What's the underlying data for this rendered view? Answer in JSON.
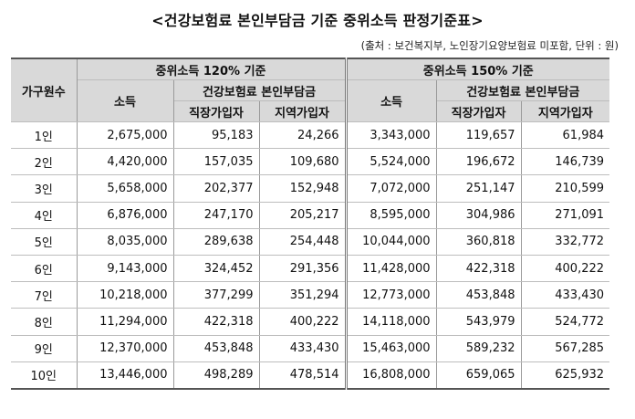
{
  "title": "<건강보험료 본인부담금 기준 중위소득 판정기준표>",
  "source_note": "(출처 : 보건복지부, 노인장기요양보험료 미포함, 단위 : 원)",
  "headers": {
    "household": "가구원수",
    "group_120": "중위소득 120% 기준",
    "group_150": "중위소득 150% 기준",
    "income": "소득",
    "premium": "건강보험료 본인부담금",
    "workplace": "직장가입자",
    "regional": "지역가입자"
  },
  "rows": [
    {
      "label": "1인",
      "inc120": "2,675,000",
      "work120": "95,183",
      "reg120": "24,266",
      "inc150": "3,343,000",
      "work150": "119,657",
      "reg150": "61,984"
    },
    {
      "label": "2인",
      "inc120": "4,420,000",
      "work120": "157,035",
      "reg120": "109,680",
      "inc150": "5,524,000",
      "work150": "196,672",
      "reg150": "146,739"
    },
    {
      "label": "3인",
      "inc120": "5,658,000",
      "work120": "202,377",
      "reg120": "152,948",
      "inc150": "7,072,000",
      "work150": "251,147",
      "reg150": "210,599"
    },
    {
      "label": "4인",
      "inc120": "6,876,000",
      "work120": "247,170",
      "reg120": "205,217",
      "inc150": "8,595,000",
      "work150": "304,986",
      "reg150": "271,091"
    },
    {
      "label": "5인",
      "inc120": "8,035,000",
      "work120": "289,638",
      "reg120": "254,448",
      "inc150": "10,044,000",
      "work150": "360,818",
      "reg150": "332,772"
    },
    {
      "label": "6인",
      "inc120": "9,143,000",
      "work120": "324,452",
      "reg120": "291,356",
      "inc150": "11,428,000",
      "work150": "422,318",
      "reg150": "400,222"
    },
    {
      "label": "7인",
      "inc120": "10,218,000",
      "work120": "377,299",
      "reg120": "351,294",
      "inc150": "12,773,000",
      "work150": "453,848",
      "reg150": "433,430"
    },
    {
      "label": "8인",
      "inc120": "11,294,000",
      "work120": "422,318",
      "reg120": "400,222",
      "inc150": "14,118,000",
      "work150": "543,979",
      "reg150": "524,772"
    },
    {
      "label": "9인",
      "inc120": "12,370,000",
      "work120": "453,848",
      "reg120": "433,430",
      "inc150": "15,463,000",
      "work150": "589,232",
      "reg150": "567,285"
    },
    {
      "label": "10인",
      "inc120": "13,446,000",
      "work120": "498,289",
      "reg120": "478,514",
      "inc150": "16,808,000",
      "work150": "659,065",
      "reg150": "625,932"
    }
  ],
  "colors": {
    "header_bg": "#d9d9d9",
    "border": "#9a9a9a",
    "text": "#111111"
  }
}
